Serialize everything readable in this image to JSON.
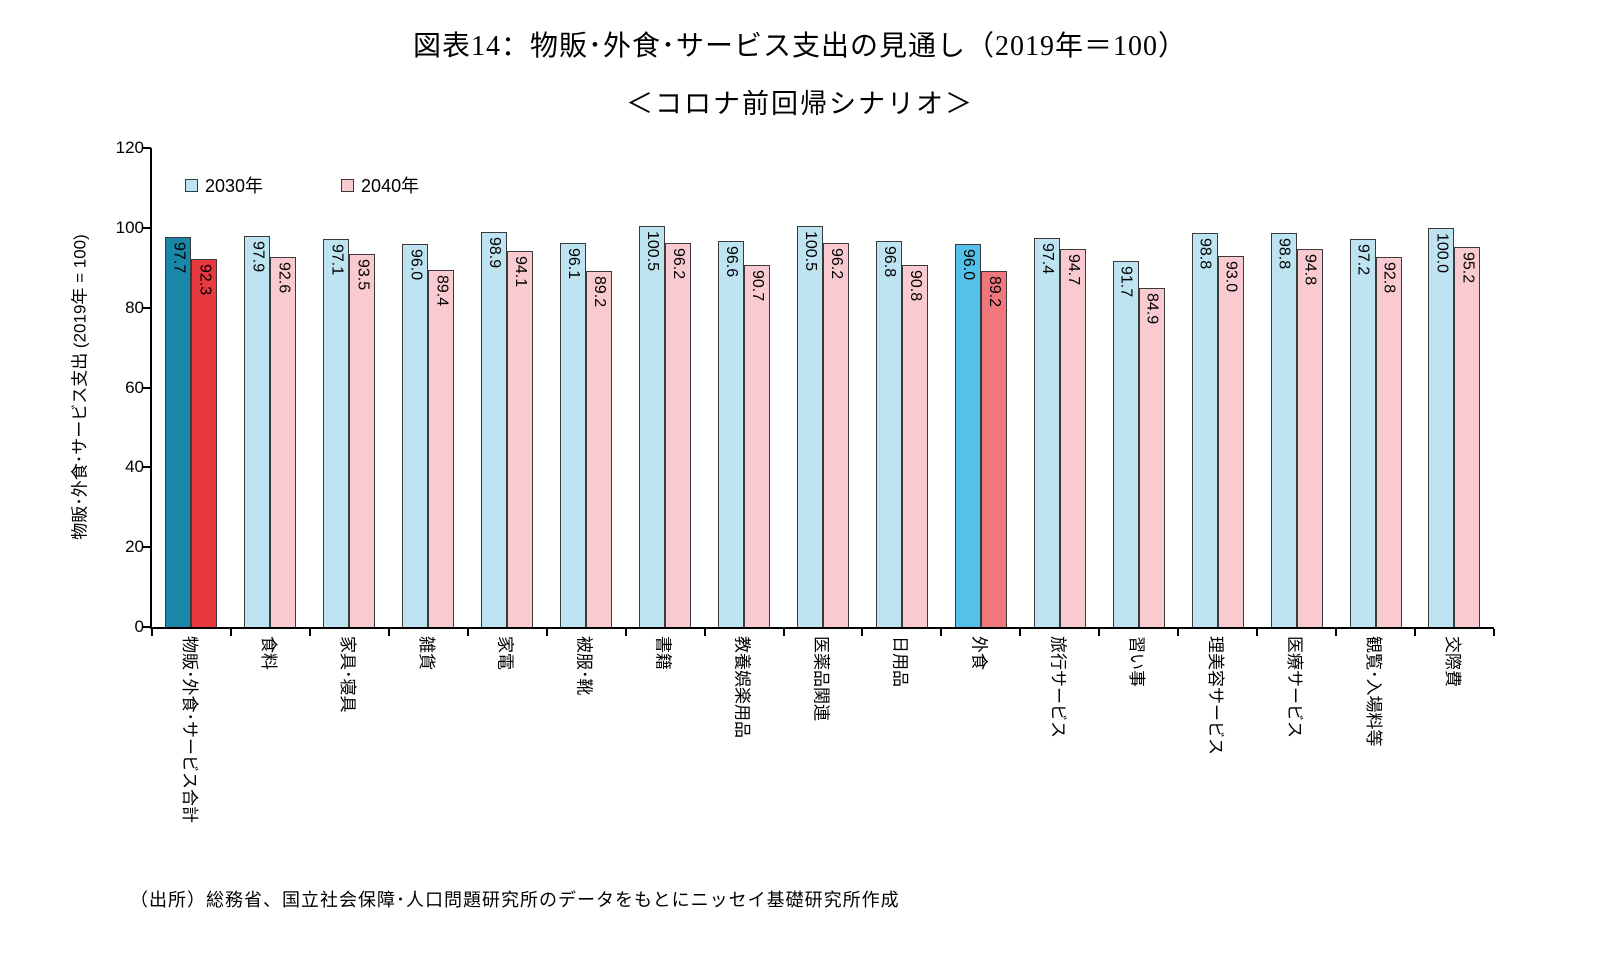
{
  "title": {
    "line1": "図表14：物販･外食･サービス支出の見通し（2019年＝100）",
    "line2": "＜コロナ前回帰シナリオ＞"
  },
  "source": "（出所）総務省、国立社会保障･人口問題研究所のデータをもとにニッセイ基礎研究所作成",
  "chart_data": {
    "type": "bar",
    "title": "図表14：物販･外食･サービス支出の見通し（2019年＝100）＜コロナ前回帰シナリオ＞",
    "xlabel": "",
    "ylabel": "物販･外食･サービス支出 (2019年 = 100)",
    "ylim": [
      0,
      120
    ],
    "yticks": [
      0,
      20,
      40,
      60,
      80,
      100,
      120
    ],
    "grid": false,
    "legend_position": "top-left-inside",
    "categories": [
      "物販･外食･サービス合計",
      "食料",
      "家具･寝具",
      "雑貨",
      "家電",
      "被服･靴",
      "書籍",
      "教養娯楽用品",
      "医薬品関連",
      "日用品",
      "外食",
      "旅行サービス",
      "習い事",
      "理美容サービス",
      "医療サービス",
      "観覧･入場料等",
      "交際費"
    ],
    "series": [
      {
        "name": "2030年",
        "color": "#BEE3F1",
        "values": [
          97.7,
          97.9,
          97.1,
          96.0,
          98.9,
          96.1,
          100.5,
          96.6,
          100.5,
          96.8,
          96.0,
          97.4,
          91.7,
          98.8,
          98.8,
          97.2,
          100.0
        ]
      },
      {
        "name": "2040年",
        "color": "#F9CBD1",
        "values": [
          92.3,
          92.6,
          93.5,
          89.4,
          94.1,
          89.2,
          96.2,
          90.7,
          96.2,
          90.8,
          89.2,
          94.7,
          84.9,
          93.0,
          94.8,
          92.8,
          95.2
        ]
      }
    ],
    "value_label_format": "0.1f",
    "highlights": [
      {
        "index": 0,
        "colors": [
          "#1A86A8",
          "#E8393E"
        ]
      },
      {
        "index": 10,
        "colors": [
          "#55C0E8",
          "#F0787D"
        ]
      }
    ],
    "colors": {
      "bar_border": "#3a3a3a",
      "axis": "#000000"
    }
  }
}
